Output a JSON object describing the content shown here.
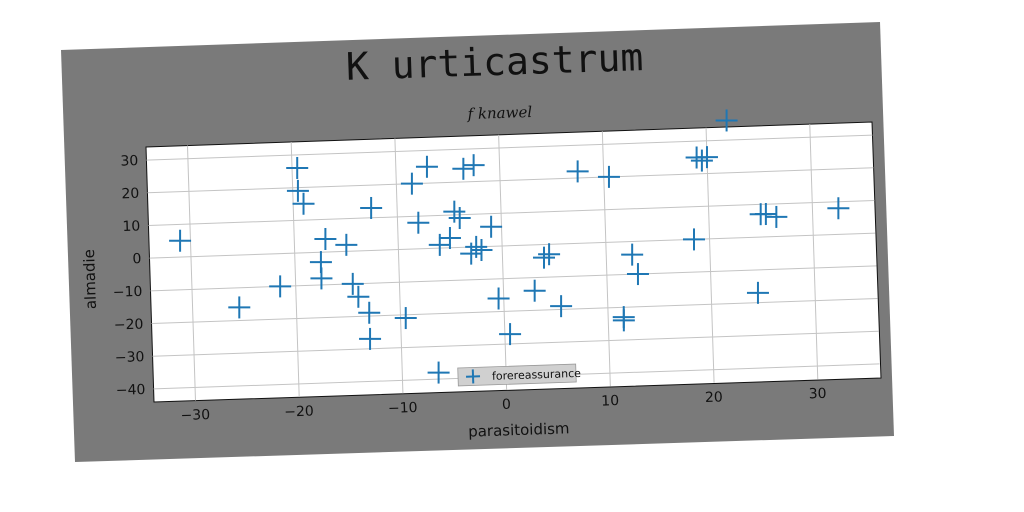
{
  "chart_data": {
    "type": "scatter",
    "title": "K urticastrum",
    "subtitle": "f knawel",
    "xlabel": "parasitoidism",
    "ylabel": "almadie",
    "xlim": [
      -34,
      36
    ],
    "ylim": [
      -44,
      34
    ],
    "xticks": [
      -30,
      -20,
      -10,
      0,
      10,
      20,
      30
    ],
    "yticks": [
      30,
      20,
      10,
      0,
      -10,
      -20,
      -30,
      -40
    ],
    "xtick_labels": [
      "−30",
      "−20",
      "−10",
      "0",
      "10",
      "20",
      "30"
    ],
    "ytick_labels": [
      "30",
      "20",
      "10",
      "0",
      "−10",
      "−20",
      "−30",
      "−40"
    ],
    "grid": true,
    "legend_position": "lower-center",
    "marker": "plus",
    "series": [
      {
        "name": "forereassurance",
        "color": "#1f77b4",
        "points": [
          [
            -31,
            5
          ],
          [
            -25.5,
            -16
          ],
          [
            -21.5,
            -10
          ],
          [
            -19.5,
            26
          ],
          [
            -19.5,
            19
          ],
          [
            -19,
            15
          ],
          [
            -17,
            4
          ],
          [
            -17.5,
            -3
          ],
          [
            -17.5,
            -8
          ],
          [
            -15,
            2
          ],
          [
            -14.5,
            -10
          ],
          [
            -14,
            -14
          ],
          [
            -12.5,
            13
          ],
          [
            -13,
            -19
          ],
          [
            -13,
            -27
          ],
          [
            -9.5,
            -21
          ],
          [
            -8.5,
            20
          ],
          [
            -8,
            8
          ],
          [
            -7,
            25
          ],
          [
            -6.5,
            -38
          ],
          [
            -6,
            1
          ],
          [
            -5,
            3
          ],
          [
            -4.5,
            11
          ],
          [
            -4,
            9
          ],
          [
            -3.5,
            24
          ],
          [
            -2.5,
            25
          ],
          [
            -3,
            -2
          ],
          [
            -2.5,
            0
          ],
          [
            -2,
            -1
          ],
          [
            -1,
            6
          ],
          [
            -0.5,
            -16
          ],
          [
            0.5,
            -27
          ],
          [
            3,
            -14
          ],
          [
            4,
            -4
          ],
          [
            4.5,
            -3
          ],
          [
            5.5,
            -19
          ],
          [
            7.5,
            22
          ],
          [
            10.5,
            20
          ],
          [
            11.5,
            -23
          ],
          [
            11.5,
            -24
          ],
          [
            12.5,
            -4
          ],
          [
            13,
            -10
          ],
          [
            18.5,
            0
          ],
          [
            19,
            25
          ],
          [
            19.5,
            24
          ],
          [
            20,
            25
          ],
          [
            22,
            36
          ],
          [
            24.5,
            -17
          ],
          [
            25,
            7
          ],
          [
            25.5,
            7
          ],
          [
            26.5,
            6
          ],
          [
            32.5,
            8
          ]
        ]
      }
    ]
  }
}
